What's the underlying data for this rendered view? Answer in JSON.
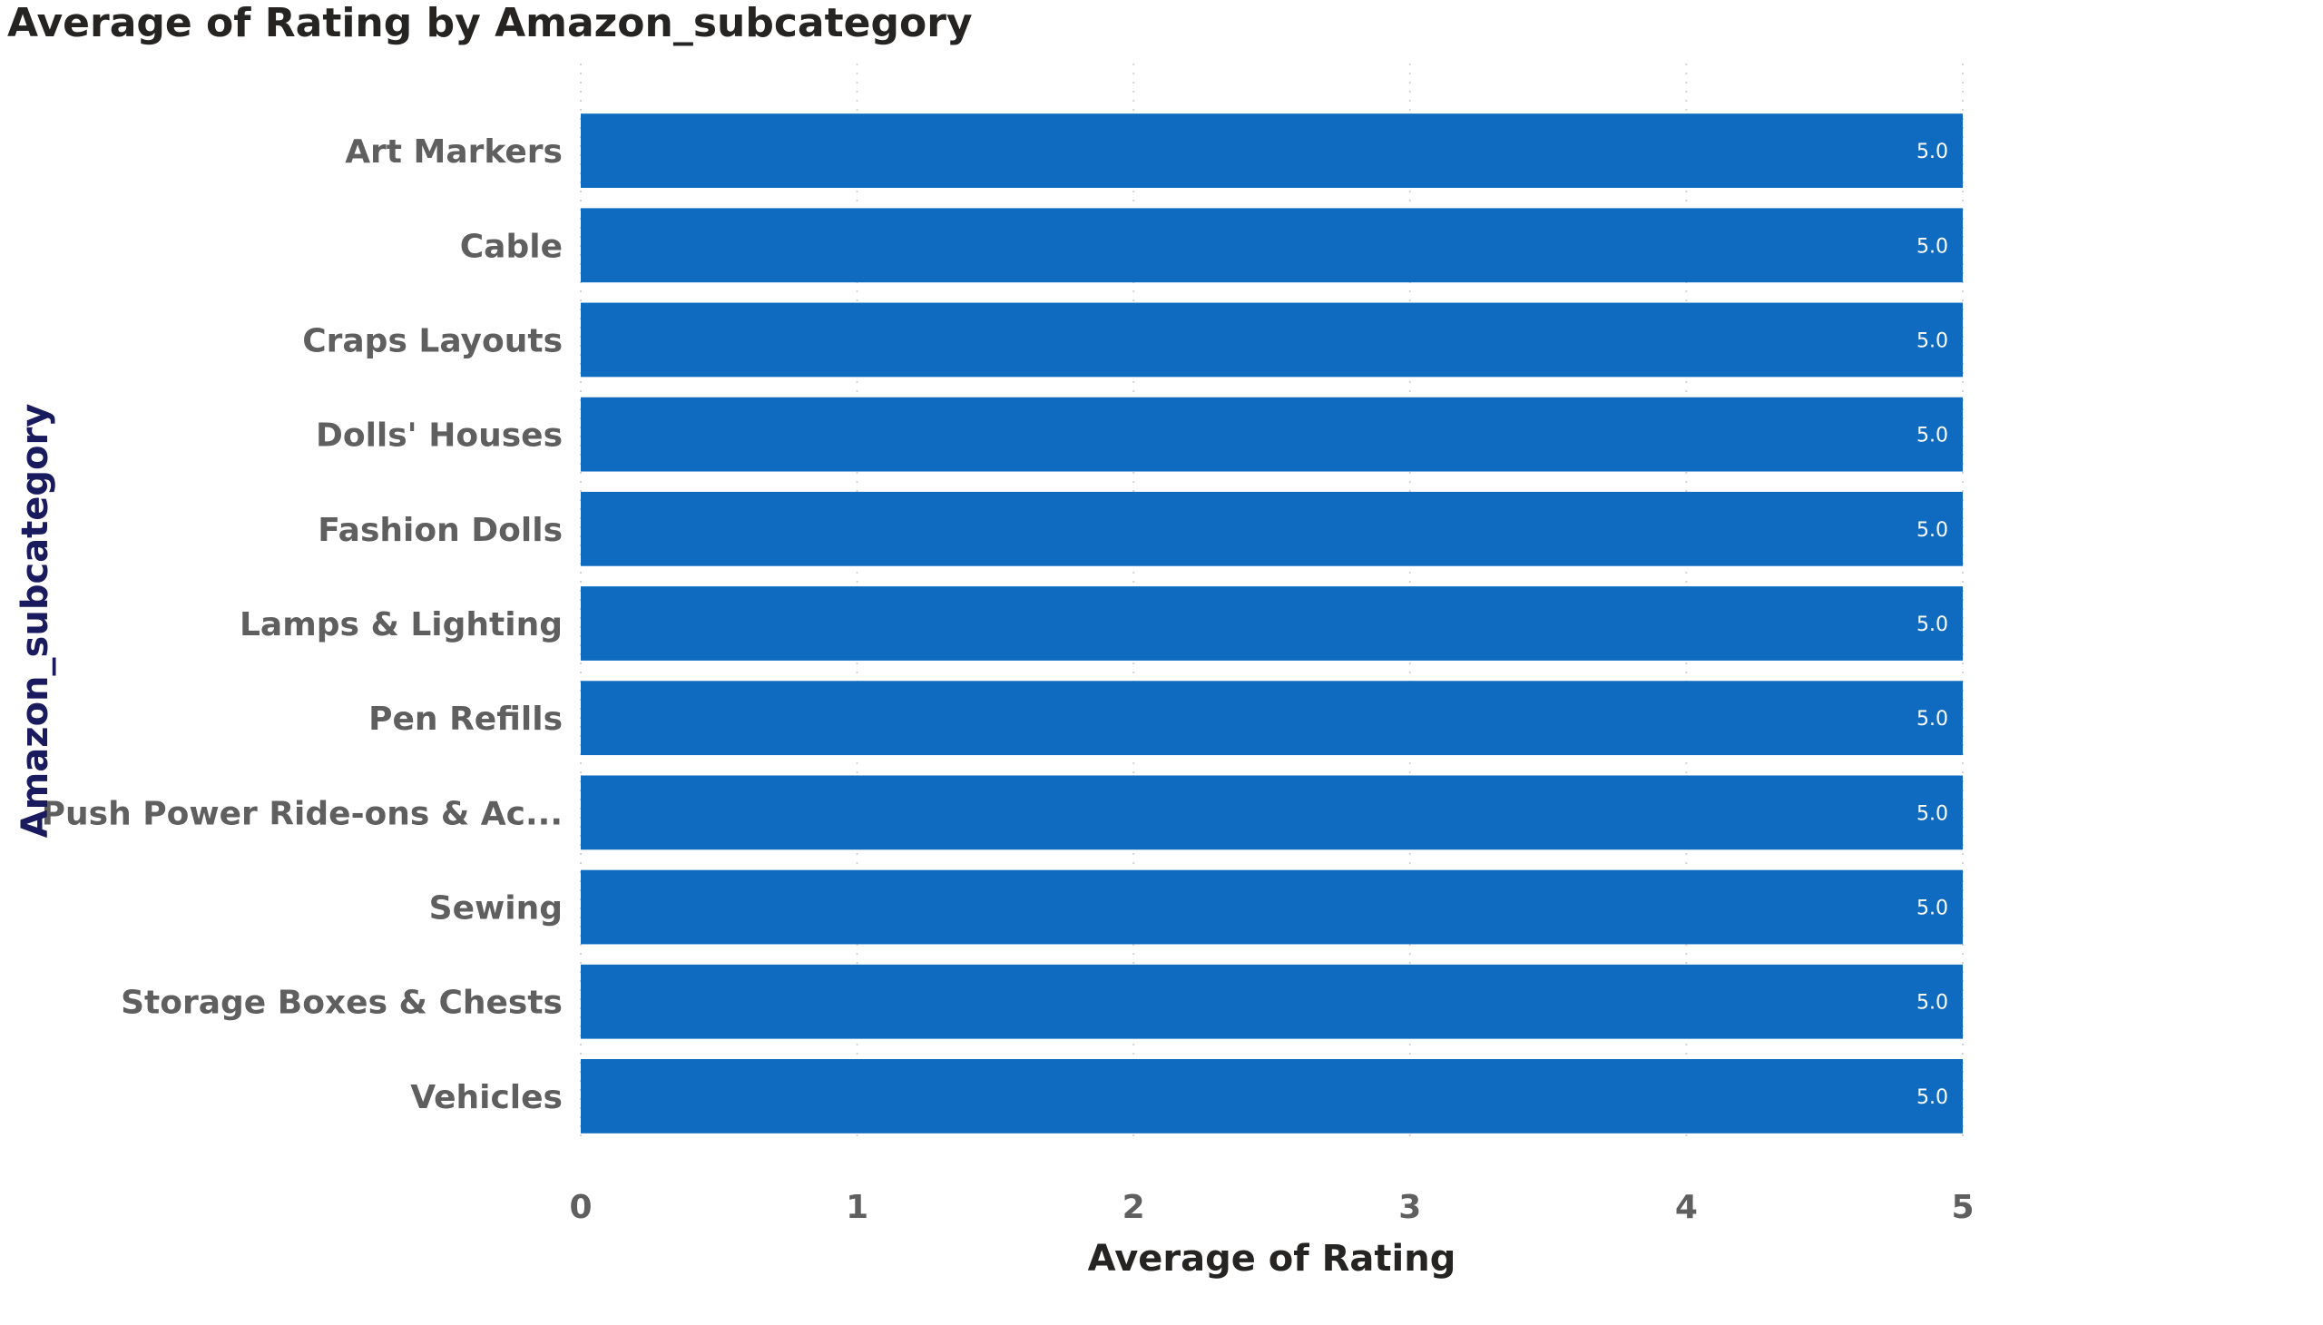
{
  "chart_data": {
    "type": "bar",
    "orientation": "horizontal",
    "title": "Average of Rating by Amazon_subcategory",
    "xlabel": "Average of Rating",
    "ylabel": "Amazon_subcategory",
    "categories": [
      "Art Markers",
      "Cable",
      "Craps Layouts",
      "Dolls' Houses",
      "Fashion Dolls",
      "Lamps & Lighting",
      "Pen Refills",
      "Push Power Ride-ons & Ac...",
      "Sewing",
      "Storage Boxes & Chests",
      "Vehicles"
    ],
    "values": [
      5,
      5,
      5,
      5,
      5,
      5,
      5,
      5,
      5,
      5,
      5
    ],
    "data_labels": [
      "5.0",
      "5.0",
      "5.0",
      "5.0",
      "5.0",
      "5.0",
      "5.0",
      "5.0",
      "5.0",
      "5.0",
      "5.0"
    ],
    "xlim": [
      0,
      5
    ],
    "xticks": [
      "0",
      "1",
      "2",
      "3",
      "4",
      "5"
    ],
    "grid": true,
    "bar_color": "#0F6BC0"
  }
}
